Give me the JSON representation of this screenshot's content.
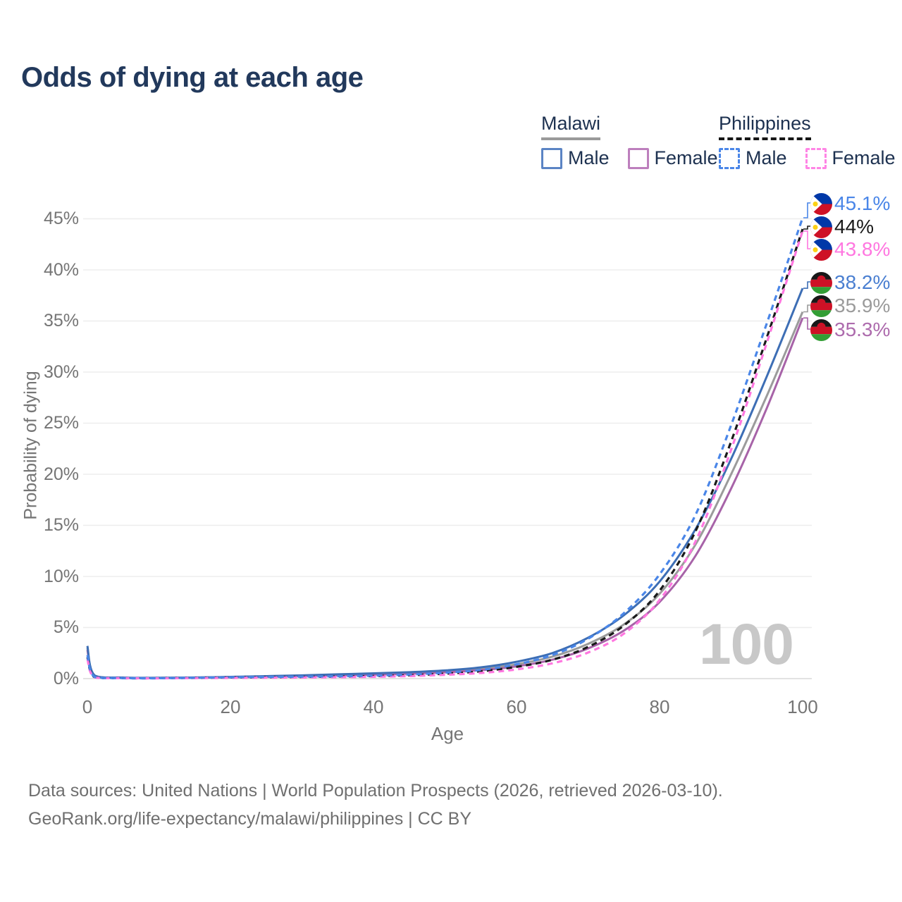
{
  "page": {
    "title": "Odds of dying at each age",
    "watermark": "100",
    "caption_line1": "Data sources: United Nations | World Population Prospects (2026, retrieved 2026-03-10).",
    "caption_line2": "GeoRank.org/life-expectancy/malawi/philippines | CC BY"
  },
  "legend": {
    "malawi": {
      "title": "Malawi",
      "male": "Male",
      "female": "Female",
      "male_color": "#5b84c4",
      "female_color": "#bd7fbd",
      "underline_color": "#9a9a9a",
      "line_style": "solid"
    },
    "philippines": {
      "title": "Philippines",
      "male": "Male",
      "female": "Female",
      "male_color": "#4a86e8",
      "female_color": "#ff85e5",
      "underline_color": "#161616",
      "line_style": "dashed"
    }
  },
  "chart_data": {
    "type": "line",
    "title": "Odds of dying at each age",
    "xlabel": "Age",
    "ylabel": "Probability of dying",
    "unit": "%",
    "grid": "horizontal",
    "xlim": [
      0,
      100
    ],
    "ylim_percent": [
      0,
      47
    ],
    "x_ticks": [
      0,
      20,
      40,
      60,
      80,
      100
    ],
    "y_tick_labels": [
      "45%",
      "40%",
      "35%",
      "30%",
      "25%",
      "20%",
      "15%",
      "10%",
      "5%",
      "0%"
    ],
    "ages": [
      0,
      1,
      5,
      10,
      15,
      20,
      25,
      30,
      35,
      40,
      45,
      50,
      55,
      60,
      65,
      70,
      75,
      80,
      85,
      90,
      95,
      100
    ],
    "series": [
      {
        "name": "Philippines Male",
        "country": "Philippines",
        "sex": "Male",
        "color": "#4a86e8",
        "label_color": "#4a86e8",
        "dash": true,
        "flag_ref": "#flag-ph",
        "end_label": "45.1%",
        "values": [
          2.3,
          0.16,
          0.05,
          0.04,
          0.08,
          0.13,
          0.16,
          0.19,
          0.23,
          0.29,
          0.4,
          0.58,
          0.85,
          1.4,
          2.3,
          3.9,
          6.4,
          10.2,
          16.0,
          24.8,
          34.8,
          45.1
        ]
      },
      {
        "name": "Philippines Both sexes",
        "country": "Philippines",
        "sex": "Both",
        "color": "#1a1a1a",
        "label_color": "#1a1a1a",
        "dash": true,
        "flag_ref": "#flag-ph",
        "end_label": "44%",
        "values": [
          2.1,
          0.14,
          0.04,
          0.04,
          0.07,
          0.11,
          0.13,
          0.16,
          0.2,
          0.25,
          0.33,
          0.48,
          0.72,
          1.15,
          1.85,
          3.1,
          5.2,
          8.6,
          14.4,
          23.2,
          33.4,
          44.0
        ]
      },
      {
        "name": "Philippines Female",
        "country": "Philippines",
        "sex": "Female",
        "color": "#ff77e0",
        "label_color": "#ff77e0",
        "dash": true,
        "flag_ref": "#flag-ph",
        "end_label": "43.8%",
        "values": [
          1.9,
          0.12,
          0.04,
          0.03,
          0.05,
          0.07,
          0.09,
          0.11,
          0.14,
          0.18,
          0.25,
          0.37,
          0.55,
          0.9,
          1.5,
          2.55,
          4.4,
          7.7,
          13.4,
          22.4,
          32.9,
          43.8
        ]
      },
      {
        "name": "Malawi Male",
        "country": "Malawi",
        "sex": "Male",
        "color": "#3d6eb5",
        "label_color": "#4a7fd1",
        "dash": false,
        "flag_ref": "#flag-mw",
        "end_label": "38.2%",
        "values": [
          3.2,
          0.32,
          0.1,
          0.08,
          0.11,
          0.17,
          0.24,
          0.32,
          0.42,
          0.52,
          0.63,
          0.8,
          1.1,
          1.65,
          2.5,
          4.0,
          6.2,
          9.5,
          14.6,
          21.5,
          29.6,
          38.2
        ]
      },
      {
        "name": "Malawi Both sexes",
        "country": "Malawi",
        "sex": "Both",
        "color": "#9b9b9b",
        "label_color": "#9b9b9b",
        "dash": false,
        "flag_ref": "#flag-mw",
        "end_label": "35.9%",
        "values": [
          3.0,
          0.3,
          0.09,
          0.07,
          0.1,
          0.15,
          0.21,
          0.28,
          0.36,
          0.45,
          0.55,
          0.7,
          0.95,
          1.4,
          2.15,
          3.4,
          5.3,
          8.3,
          13.1,
          20.0,
          27.7,
          35.9
        ]
      },
      {
        "name": "Malawi Female",
        "country": "Malawi",
        "sex": "Female",
        "color": "#a763a8",
        "label_color": "#ad6bad",
        "dash": false,
        "flag_ref": "#flag-mw",
        "end_label": "35.3%",
        "values": [
          2.8,
          0.27,
          0.08,
          0.06,
          0.09,
          0.13,
          0.18,
          0.24,
          0.31,
          0.39,
          0.48,
          0.62,
          0.83,
          1.2,
          1.85,
          2.95,
          4.7,
          7.5,
          12.0,
          18.6,
          26.5,
          35.3
        ]
      }
    ]
  }
}
